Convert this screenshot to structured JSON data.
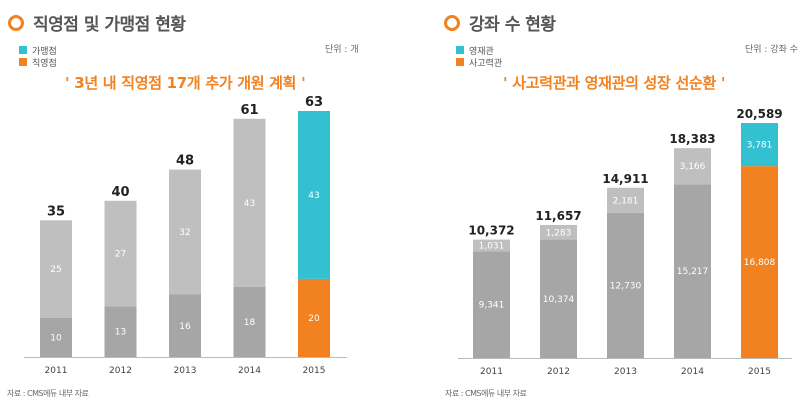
{
  "chart_data": [
    {
      "type": "bar",
      "stacked": true,
      "title": "직영점 및 가맹점 현황",
      "unit_label": "단위 : 개",
      "headline": "' 3년 내 직영점 17개 추가 개원 계획 '",
      "source": "자료 : CMS에듀 내부 자료",
      "legend": [
        {
          "name": "가맹점",
          "color": "#33c1d2"
        },
        {
          "name": "직영점",
          "color": "#f28220"
        }
      ],
      "legend_placement": "top-left",
      "categories": [
        "2011",
        "2012",
        "2013",
        "2014",
        "2015"
      ],
      "series": [
        {
          "name": "직영점",
          "values": [
            10,
            13,
            16,
            18,
            20
          ],
          "colors": [
            "#a6a6a6",
            "#a6a6a6",
            "#a6a6a6",
            "#a6a6a6",
            "#f28220"
          ]
        },
        {
          "name": "가맹점",
          "values": [
            25,
            27,
            32,
            43,
            43
          ],
          "colors": [
            "#bfbfbf",
            "#bfbfbf",
            "#bfbfbf",
            "#bfbfbf",
            "#33c1d2"
          ]
        }
      ],
      "totals": [
        "35",
        "40",
        "48",
        "61",
        "63"
      ],
      "segment_labels": [
        [
          "10",
          "13",
          "16",
          "18",
          "20"
        ],
        [
          "25",
          "27",
          "32",
          "43",
          "43"
        ]
      ],
      "ylim": [
        0,
        63
      ],
      "xlabel": "",
      "ylabel": "",
      "grid": false
    },
    {
      "type": "bar",
      "stacked": true,
      "title": "강좌 수 현황",
      "unit_label": "단위 : 강좌 수",
      "headline": "' 사고력관과 영재관의 성장 선순환 '",
      "source": "자료 : CMS에듀 내부 자료",
      "legend": [
        {
          "name": "영재관",
          "color": "#33c1d2"
        },
        {
          "name": "사고력관",
          "color": "#f28220"
        }
      ],
      "legend_placement": "top-left",
      "categories": [
        "2011",
        "2012",
        "2013",
        "2014",
        "2015"
      ],
      "series": [
        {
          "name": "사고력관",
          "values": [
            9341,
            10374,
            12730,
            15217,
            16808
          ],
          "colors": [
            "#a6a6a6",
            "#a6a6a6",
            "#a6a6a6",
            "#a6a6a6",
            "#f28220"
          ]
        },
        {
          "name": "영재관",
          "values": [
            1031,
            1283,
            2181,
            3166,
            3781
          ],
          "colors": [
            "#bfbfbf",
            "#bfbfbf",
            "#bfbfbf",
            "#bfbfbf",
            "#33c1d2"
          ]
        }
      ],
      "totals": [
        "10,372",
        "11,657",
        "14,911",
        "18,383",
        "20,589"
      ],
      "segment_labels": [
        [
          "9,341",
          "10,374",
          "12,730",
          "15,217",
          "16,808"
        ],
        [
          "1,031",
          "1,283",
          "2,181",
          "3,166",
          "3,781"
        ]
      ],
      "ylim": [
        0,
        20589
      ],
      "xlabel": "",
      "ylabel": "",
      "grid": false
    }
  ]
}
